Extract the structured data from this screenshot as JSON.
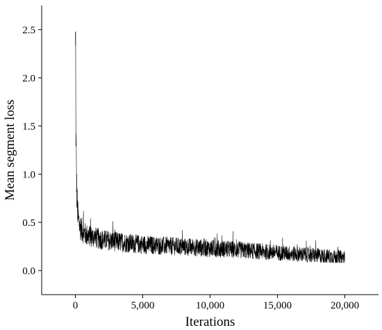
{
  "chart_data": {
    "type": "line",
    "title": "",
    "xlabel": "Iterations",
    "ylabel": "Mean segment loss",
    "xlim": [
      -2500,
      22500
    ],
    "ylim": [
      -0.25,
      2.75
    ],
    "xticks": [
      0,
      5000,
      10000,
      15000,
      20000
    ],
    "xtick_labels": [
      "0",
      "5,000",
      "10,000",
      "15,000",
      "20,000"
    ],
    "yticks": [
      0.0,
      0.5,
      1.0,
      1.5,
      2.0,
      2.5
    ],
    "ytick_labels": [
      "0.0",
      "0.5",
      "1.0",
      "1.5",
      "2.0",
      "2.5"
    ],
    "grid": false,
    "legend": "none",
    "series": [
      {
        "x": [
          0,
          20,
          50,
          100,
          150,
          200,
          300,
          400,
          600,
          800,
          1000,
          1500,
          2000,
          2500,
          3000,
          4000,
          5000,
          6000,
          7000,
          8000,
          9000,
          10000,
          11000,
          12000,
          13000,
          14000,
          15000,
          16000,
          17000,
          18000,
          19000,
          20000
        ],
        "y": [
          2.48,
          1.9,
          1.3,
          0.85,
          0.65,
          0.55,
          0.48,
          0.44,
          0.4,
          0.37,
          0.36,
          0.34,
          0.32,
          0.31,
          0.3,
          0.285,
          0.27,
          0.26,
          0.255,
          0.245,
          0.24,
          0.23,
          0.225,
          0.215,
          0.205,
          0.195,
          0.185,
          0.175,
          0.165,
          0.155,
          0.145,
          0.135
        ]
      }
    ]
  }
}
